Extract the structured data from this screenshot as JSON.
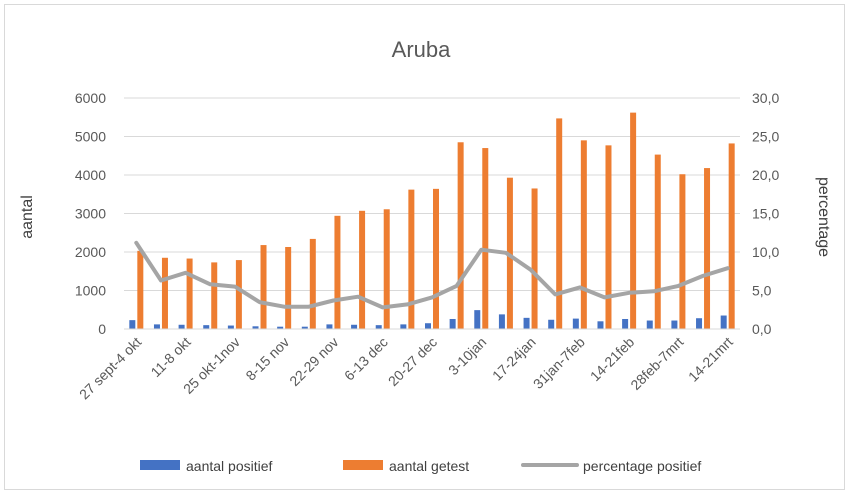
{
  "chart_data": {
    "type": "bar",
    "title": "Aruba",
    "ylabel": "aantal",
    "y2label": "percentage",
    "ylim": [
      0,
      6000
    ],
    "y2lim": [
      0,
      30
    ],
    "yticks": [
      "0",
      "1000",
      "2000",
      "3000",
      "4000",
      "5000",
      "6000"
    ],
    "y2ticks": [
      "0,0",
      "5,0",
      "10,0",
      "15,0",
      "20,0",
      "25,0",
      "30,0"
    ],
    "grid": true,
    "legend_position": "bottom",
    "categories": [
      "27 sept-4 okt",
      "",
      "11-8 okt",
      "",
      "25 okt-1nov",
      "",
      "8-15 nov",
      "",
      "22-29 nov",
      "",
      "6-13 dec",
      "",
      "20-27 dec",
      "",
      "3-10jan",
      "",
      "17-24jan",
      "",
      "31jan-7feb",
      "",
      "14-21feb",
      "",
      "28feb-7mrt",
      "",
      "14-21mrt"
    ],
    "series": [
      {
        "name": "aantal positief",
        "axis": "left",
        "kind": "bar",
        "color": "#4472c4",
        "values": [
          230,
          120,
          110,
          100,
          90,
          70,
          60,
          60,
          120,
          110,
          100,
          120,
          150,
          260,
          490,
          380,
          290,
          240,
          270,
          200,
          260,
          220,
          220,
          280,
          350
        ]
      },
      {
        "name": "aantal getest",
        "axis": "left",
        "kind": "bar",
        "color": "#ed7d31",
        "values": [
          2030,
          1850,
          1830,
          1730,
          1790,
          2180,
          2130,
          2340,
          2940,
          3070,
          3110,
          3620,
          3640,
          4850,
          4700,
          3930,
          3650,
          5470,
          4900,
          4770,
          5620,
          4530,
          4020,
          4180,
          4820
        ]
      },
      {
        "name": "percentage positief",
        "axis": "right",
        "kind": "line",
        "color": "#a5a5a5",
        "values": [
          11.2,
          6.3,
          7.3,
          5.8,
          5.5,
          3.5,
          2.9,
          2.9,
          3.7,
          4.2,
          2.8,
          3.2,
          4.1,
          5.6,
          10.3,
          9.9,
          7.7,
          4.5,
          5.4,
          4.1,
          4.7,
          4.9,
          5.6,
          6.9,
          7.9
        ]
      }
    ]
  }
}
